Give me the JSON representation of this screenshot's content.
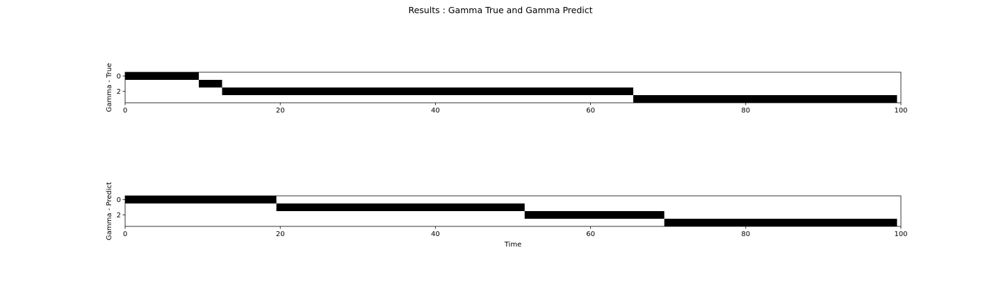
{
  "figure": {
    "title": "Results : Gamma True and Gamma Predict"
  },
  "chart_data": [
    {
      "type": "heatmap",
      "ylabel": "Gamma - True",
      "xlabel": "",
      "xlim": [
        0,
        100
      ],
      "ylim": [
        3.5,
        -0.5
      ],
      "x_ticks": [
        0,
        20,
        40,
        60,
        80,
        100
      ],
      "y_ticks": [
        0,
        2
      ],
      "cmap": "binary",
      "on_color": "#000000",
      "off_color": "#ffffff",
      "segments": [
        {
          "state": 0,
          "start": 0,
          "end": 9.5
        },
        {
          "state": 1,
          "start": 9.5,
          "end": 12.5
        },
        {
          "state": 2,
          "start": 12.5,
          "end": 65.5
        },
        {
          "state": 3,
          "start": 65.5,
          "end": 99.5
        }
      ]
    },
    {
      "type": "heatmap",
      "ylabel": "Gamma - Predict",
      "xlabel": "Time",
      "xlim": [
        0,
        100
      ],
      "ylim": [
        3.5,
        -0.5
      ],
      "x_ticks": [
        0,
        20,
        40,
        60,
        80,
        100
      ],
      "y_ticks": [
        0,
        2
      ],
      "cmap": "binary",
      "on_color": "#000000",
      "off_color": "#ffffff",
      "segments": [
        {
          "state": 0,
          "start": 0,
          "end": 19.5
        },
        {
          "state": 1,
          "start": 19.5,
          "end": 51.5
        },
        {
          "state": 2,
          "start": 51.5,
          "end": 69.5
        },
        {
          "state": 3,
          "start": 69.5,
          "end": 99.5
        }
      ]
    }
  ]
}
